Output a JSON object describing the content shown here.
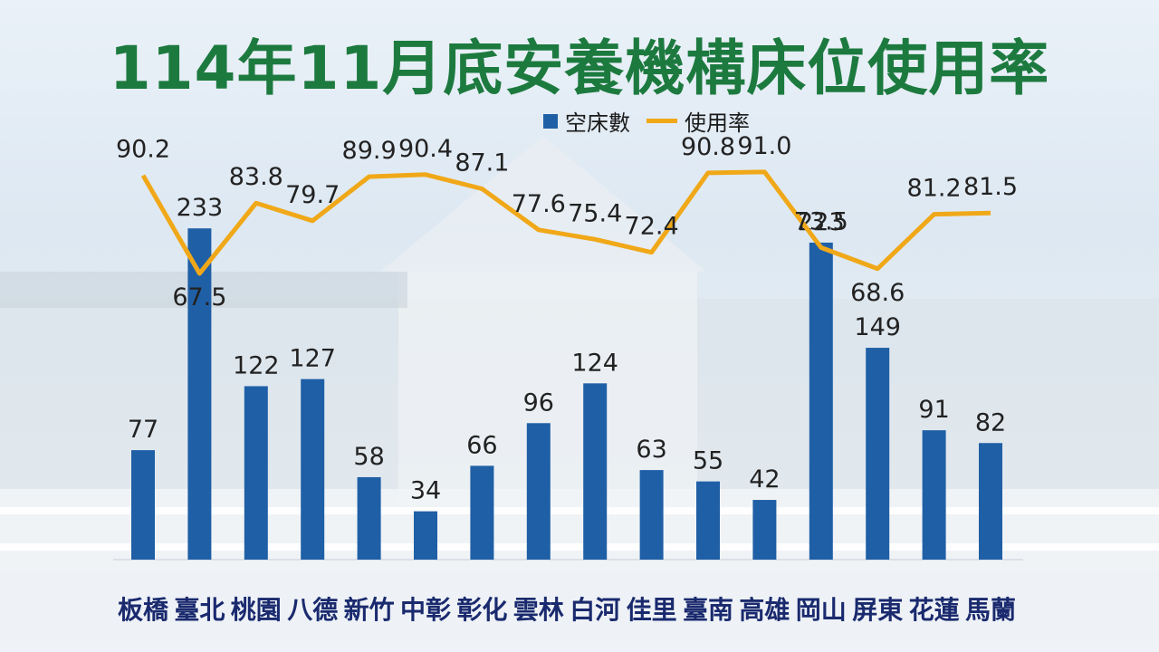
{
  "page": {
    "title": "114年11月底安養機構床位使用率"
  },
  "legend": {
    "bar_label": "空床數",
    "line_label": "使用率"
  },
  "chart_data": {
    "type": "bar",
    "title": "114年11月底安養機構床位使用率",
    "categories": [
      "板橋",
      "臺北",
      "桃園",
      "八德",
      "新竹",
      "中彰",
      "彰化",
      "雲林",
      "白河",
      "佳里",
      "臺南",
      "高雄",
      "岡山",
      "屏東",
      "花蓮",
      "馬蘭"
    ],
    "series": [
      {
        "name": "空床數",
        "type": "bar",
        "values": [
          77,
          233,
          122,
          127,
          58,
          34,
          66,
          96,
          124,
          63,
          55,
          42,
          223,
          149,
          91,
          82
        ]
      },
      {
        "name": "使用率",
        "type": "line",
        "values": [
          90.2,
          67.5,
          83.8,
          79.7,
          89.9,
          90.4,
          87.1,
          77.6,
          75.4,
          72.4,
          90.8,
          91.0,
          73.5,
          68.6,
          81.2,
          81.5
        ]
      }
    ],
    "colors": {
      "bar": "#1f5fa6",
      "line": "#f0a818",
      "title": "#1d7a3f"
    },
    "legend_position": "top-center",
    "grid": false
  }
}
